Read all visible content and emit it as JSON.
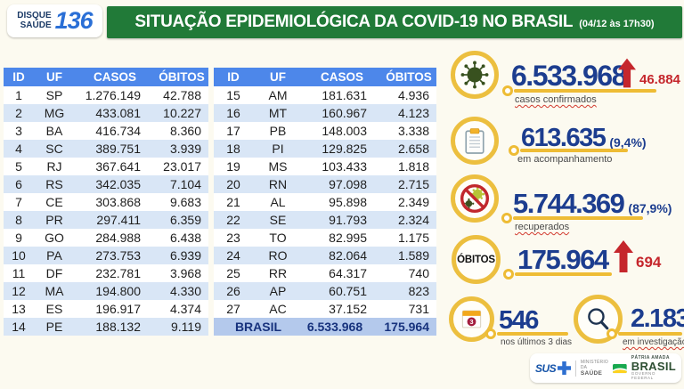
{
  "header": {
    "logo_line1": "DISQUE",
    "logo_line2": "SAÚDE",
    "logo_number": "136",
    "title": "SITUAÇÃO EPIDEMIOLÓGICA DA COVID-19 NO BRASIL",
    "timestamp": "(04/12 às 17h30)"
  },
  "colors": {
    "banner_green": "#217a38",
    "table_header_blue": "#4d87ea",
    "stripe_blue": "#d9e6f6",
    "total_row_blue": "#b4c9ec",
    "number_navy": "#1c3d8f",
    "alert_red": "#c5262c",
    "accent_gold": "#ecbf3f"
  },
  "tables": {
    "columns": [
      "ID",
      "UF",
      "CASOS",
      "ÓBITOS"
    ],
    "left_rows": [
      [
        "1",
        "SP",
        "1.276.149",
        "42.788"
      ],
      [
        "2",
        "MG",
        "433.081",
        "10.227"
      ],
      [
        "3",
        "BA",
        "416.734",
        "8.360"
      ],
      [
        "4",
        "SC",
        "389.751",
        "3.939"
      ],
      [
        "5",
        "RJ",
        "367.641",
        "23.017"
      ],
      [
        "6",
        "RS",
        "342.035",
        "7.104"
      ],
      [
        "7",
        "CE",
        "303.868",
        "9.683"
      ],
      [
        "8",
        "PR",
        "297.411",
        "6.359"
      ],
      [
        "9",
        "GO",
        "284.988",
        "6.438"
      ],
      [
        "10",
        "PA",
        "273.753",
        "6.939"
      ],
      [
        "11",
        "DF",
        "232.781",
        "3.968"
      ],
      [
        "12",
        "MA",
        "194.800",
        "4.330"
      ],
      [
        "13",
        "ES",
        "196.917",
        "4.374"
      ],
      [
        "14",
        "PE",
        "188.132",
        "9.119"
      ]
    ],
    "right_rows": [
      [
        "15",
        "AM",
        "181.631",
        "4.936"
      ],
      [
        "16",
        "MT",
        "160.967",
        "4.123"
      ],
      [
        "17",
        "PB",
        "148.003",
        "3.338"
      ],
      [
        "18",
        "PI",
        "129.825",
        "2.658"
      ],
      [
        "19",
        "MS",
        "103.433",
        "1.818"
      ],
      [
        "20",
        "RN",
        "97.098",
        "2.715"
      ],
      [
        "21",
        "AL",
        "95.898",
        "2.349"
      ],
      [
        "22",
        "SE",
        "91.793",
        "2.324"
      ],
      [
        "23",
        "TO",
        "82.995",
        "1.175"
      ],
      [
        "24",
        "RO",
        "82.064",
        "1.589"
      ],
      [
        "25",
        "RR",
        "64.317",
        "740"
      ],
      [
        "26",
        "AP",
        "60.751",
        "823"
      ],
      [
        "27",
        "AC",
        "37.152",
        "731"
      ]
    ],
    "total": {
      "label": "BRASIL",
      "casos": "6.533.968",
      "obitos": "175.964"
    }
  },
  "stats": [
    {
      "icon": "virus-icon",
      "value": "6.533.968",
      "delta": "46.884",
      "label": "casos confirmados"
    },
    {
      "icon": "clipboard-icon",
      "value": "613.635",
      "suffix": "(9,4%)",
      "label": "em acompanhamento"
    },
    {
      "icon": "no-virus-icon",
      "value": "5.744.369",
      "suffix": "(87,9%)",
      "label": "recuperados"
    },
    {
      "icon": "obitos-circle",
      "icon_text": "ÓBITOS",
      "value": "175.964",
      "delta": "694"
    },
    {
      "icon": "calendar-icon",
      "value": "546",
      "label": "nos últimos 3 dias"
    },
    {
      "icon": "magnifier-icon",
      "value": "2.183",
      "label": "em investigação"
    }
  ],
  "footer": {
    "sus": "SUS",
    "ministry_line1": "MINISTÉRIO DA",
    "ministry_line2": "SAÚDE",
    "brand_top": "PÁTRIA AMADA",
    "brand_name": "BRASIL",
    "brand_sub": "GOVERNO FEDERAL"
  }
}
